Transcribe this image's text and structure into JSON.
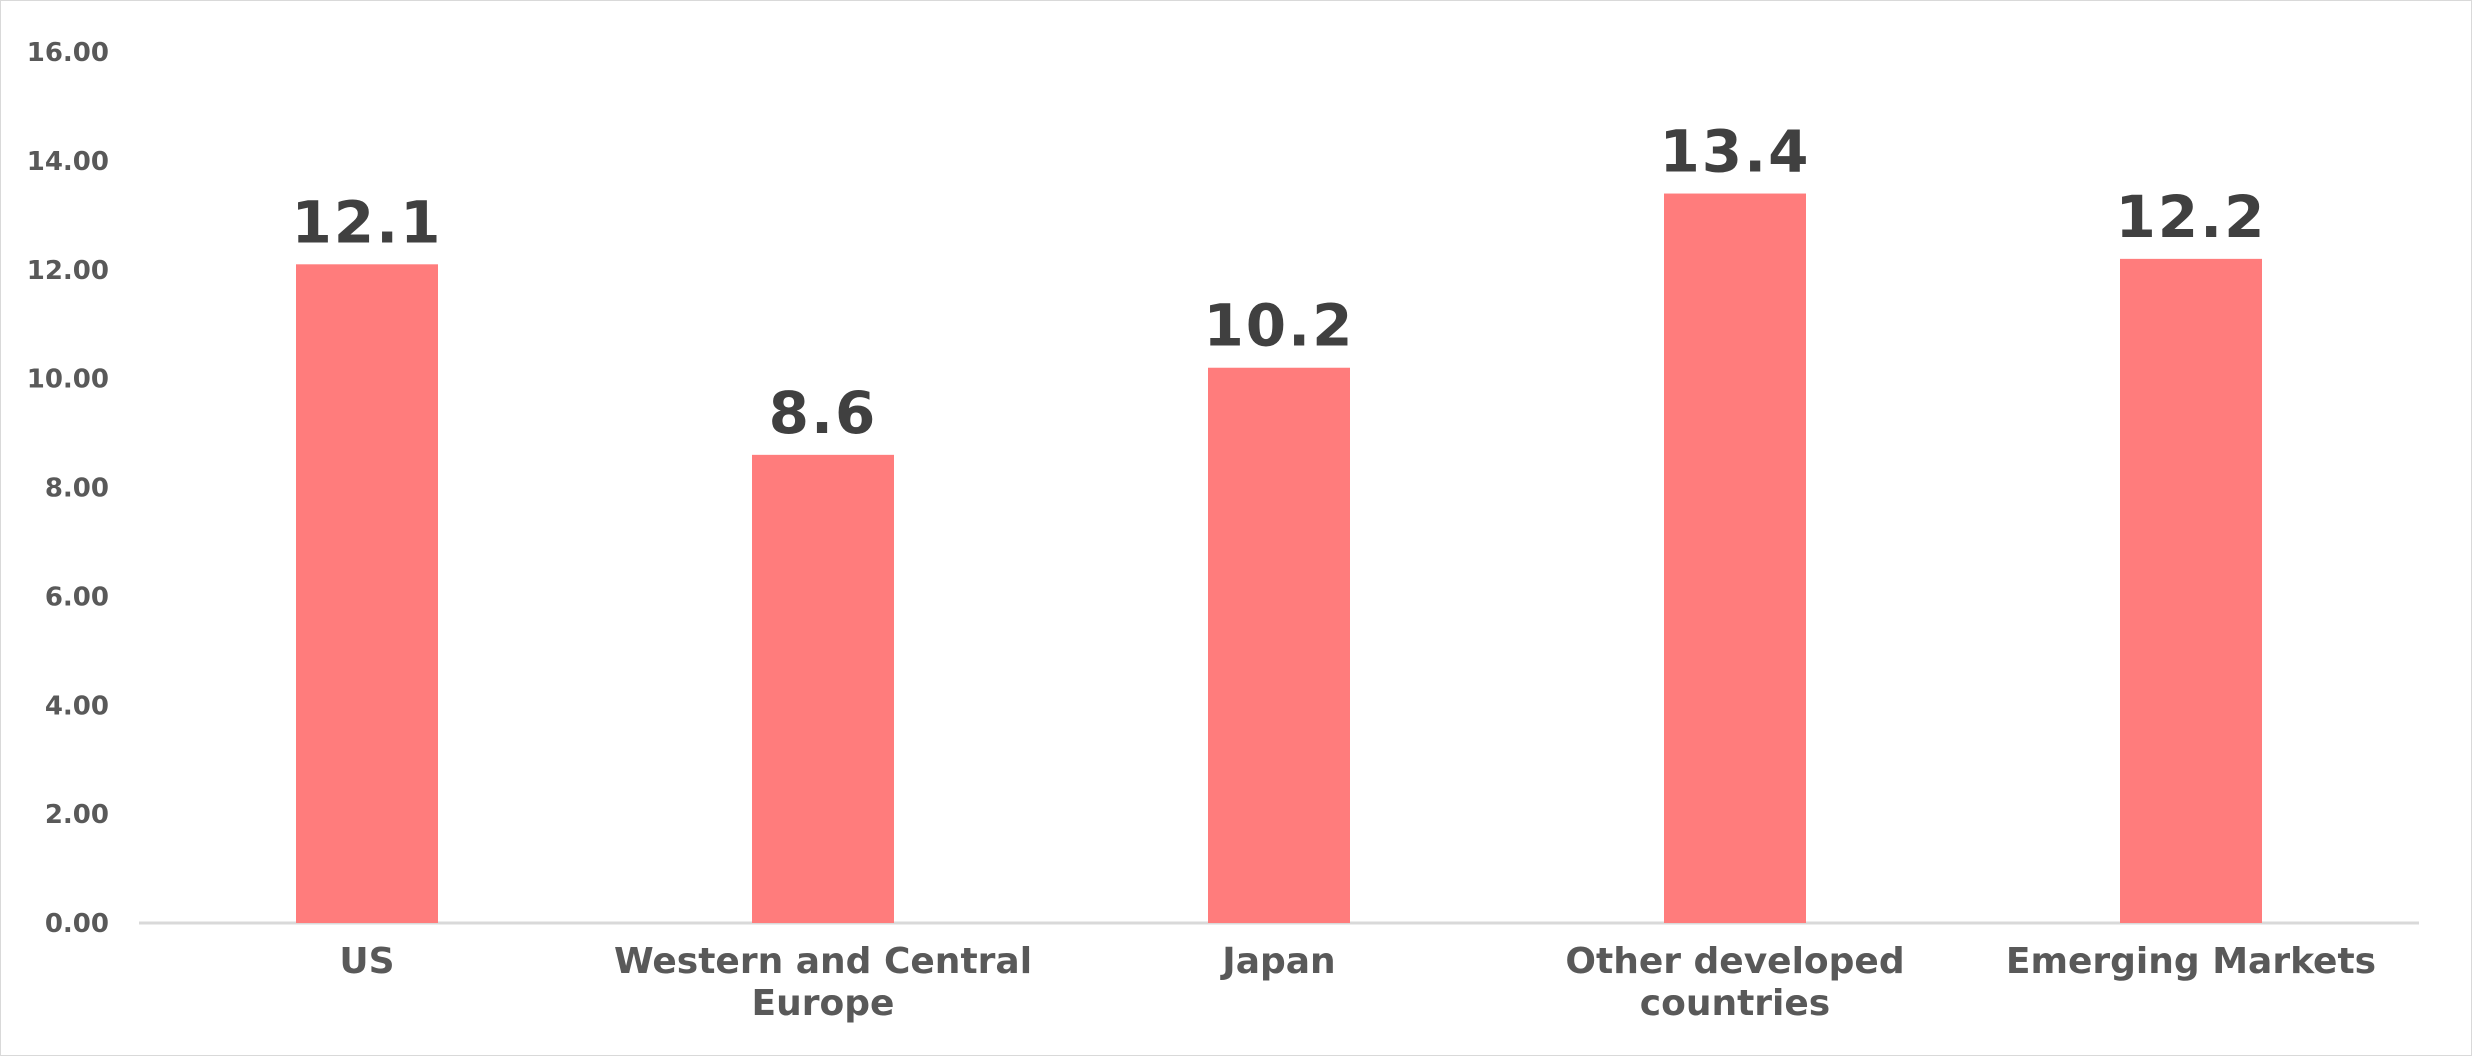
{
  "chart_data": {
    "type": "bar",
    "title": "",
    "xlabel": "",
    "ylabel": "",
    "categories": [
      [
        "US"
      ],
      [
        "Western and Central",
        "Europe"
      ],
      [
        "Japan"
      ],
      [
        "Other developed",
        "countries"
      ],
      [
        "Emerging Markets"
      ]
    ],
    "values": [
      12.1,
      8.6,
      10.2,
      13.4,
      12.2
    ],
    "data_labels": [
      "12.1",
      "8.6",
      "10.2",
      "13.4",
      "12.2"
    ],
    "ylim": [
      0,
      16
    ],
    "yticks": [
      0,
      2,
      4,
      6,
      8,
      10,
      12,
      14,
      16
    ],
    "ytick_labels": [
      "0.00",
      "2.00",
      "4.00",
      "6.00",
      "8.00",
      "10.00",
      "12.00",
      "14.00",
      "16.00"
    ],
    "grid": false,
    "legend": "none",
    "colors": {
      "bar": "#ff7c7c",
      "axis": "#d9d9d9",
      "tick_text": "#595959",
      "data_label_text": "#404040"
    }
  }
}
